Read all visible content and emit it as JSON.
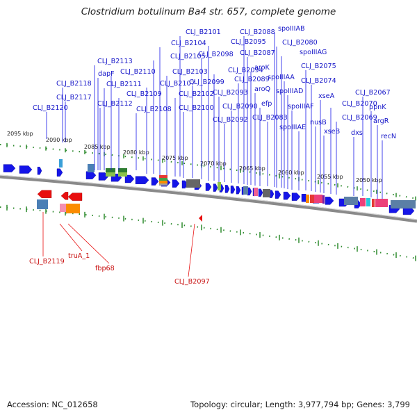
{
  "title": "Clostridium botulinum Ba4 str. 657, complete genome",
  "footer": {
    "accession": "Accession: NC_012658",
    "topology": "Topology: circular; Length: 3,977,794 bp; Genes: 3,799"
  },
  "kbp_ticks": [
    "2095 kbp",
    "2090 kbp",
    "2085 kbp",
    "2080 kbp",
    "2075 kbp",
    "2070 kbp",
    "2065 kbp",
    "2060 kbp",
    "2055 kbp",
    "2050 kbp"
  ],
  "forward_genes": [
    "CLJ_B2119",
    "truA_1",
    "fbp68",
    "CLJ_B2097"
  ],
  "reverse_genes": [
    "CLJ_B2120",
    "CLJ_B2118",
    "CLJ_B2117",
    "CLJ_B2113",
    "dapF",
    "CLJ_B2111",
    "CLJ_B2112",
    "CLJ_B2110",
    "CLJ_B2109",
    "CLJ_B2108",
    "CLJ_B2107",
    "CLJ_B2105",
    "CLJ_B2104",
    "CLJ_B2103",
    "CLJ_B2102",
    "CLJ_B2101",
    "CLJ_B2100",
    "CLJ_B2099",
    "CLJ_B2098",
    "CLJ_B2095",
    "CLJ_B2094",
    "CLJ_B2093",
    "CLJ_B2092",
    "CLJ_B2090",
    "CLJ_B2089",
    "CLJ_B2088",
    "CLJ_B2087",
    "aroK",
    "aroQ",
    "efp",
    "CLJ_B2083",
    "spoIIIAB",
    "CLJ_B2080",
    "spoIIIAG",
    "spoIIIAA",
    "spoIIIAD",
    "spoIIIAF",
    "spoIIIAE",
    "CLJ_B2075",
    "CLJ_B2074",
    "nusB",
    "xseA",
    "xseB",
    "CLJ_B2070",
    "CLJ_B2069",
    "dxs",
    "CLJ_B2067",
    "ppnK",
    "argR",
    "recN"
  ]
}
